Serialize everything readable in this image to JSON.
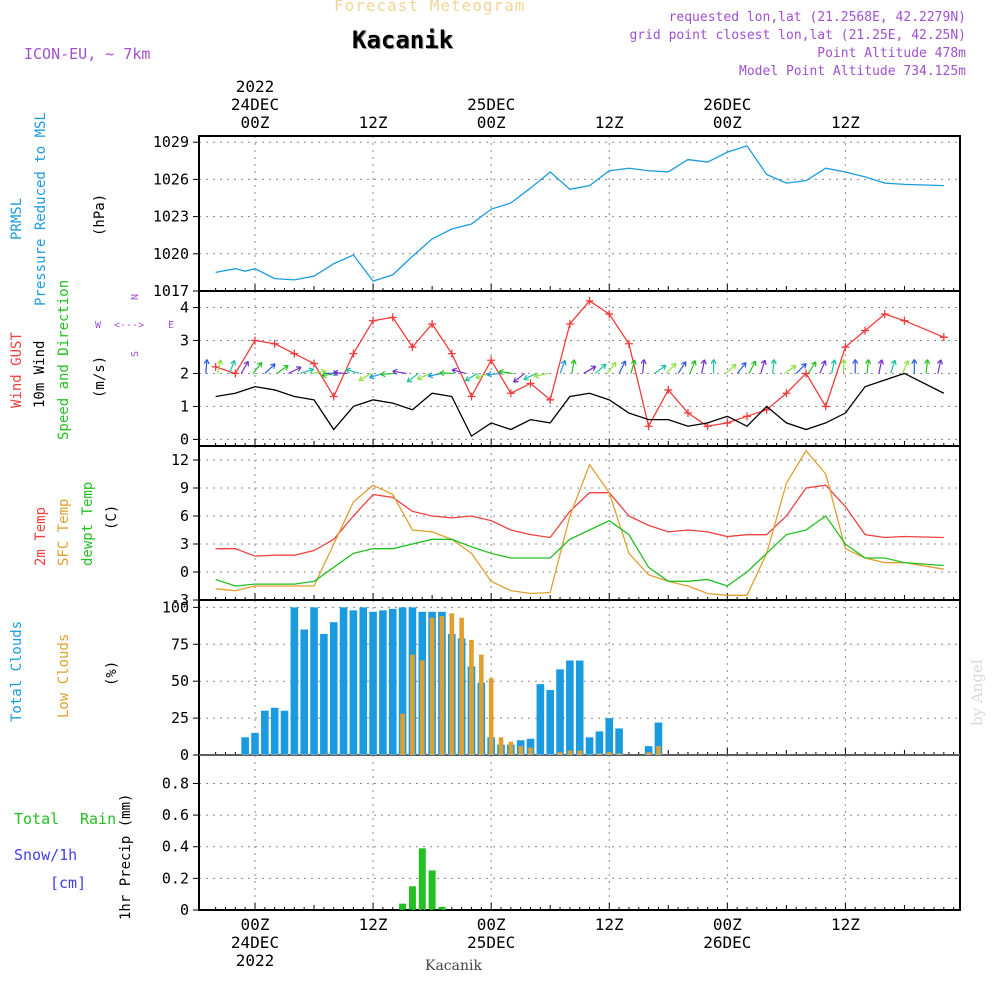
{
  "header": {
    "super_title": "Forecast Meteogram",
    "station": "Kacanik",
    "model": "ICON-EU, ~ 7km",
    "requested": "requested lon,lat (21.2568E, 42.2279N)",
    "closest": "grid point closest lon,lat (21.25E, 42.25N)",
    "point_altitude": "Point Altitude 478m",
    "model_altitude": "Model Point Altitude 734.125m"
  },
  "time_axis_top": [
    {
      "line1": "2022",
      "line2": "24DEC",
      "line3": "00Z"
    },
    {
      "line1": "",
      "line2": "",
      "line3": "12Z"
    },
    {
      "line1": "",
      "line2": "25DEC",
      "line3": "00Z"
    },
    {
      "line1": "",
      "line2": "",
      "line3": "12Z"
    },
    {
      "line1": "",
      "line2": "26DEC",
      "line3": "00Z"
    },
    {
      "line1": "",
      "line2": "",
      "line3": "12Z"
    }
  ],
  "time_axis_bottom": [
    {
      "line1": "00Z",
      "line2": "24DEC",
      "line3": "2022"
    },
    {
      "line1": "12Z",
      "line2": "",
      "line3": ""
    },
    {
      "line1": "00Z",
      "line2": "25DEC",
      "line3": ""
    },
    {
      "line1": "12Z",
      "line2": "",
      "line3": ""
    },
    {
      "line1": "00Z",
      "line2": "26DEC",
      "line3": ""
    },
    {
      "line1": "12Z",
      "line2": "",
      "line3": ""
    }
  ],
  "footer_station": "Kacanik",
  "watermark": "by Angel",
  "panels": {
    "pressure": {
      "label_a": "PRMSL",
      "label_b": "Pressure Reduced to MSL",
      "unit": "(hPa)",
      "ticks": [
        "1029",
        "1026",
        "1023",
        "1020",
        "1017"
      ]
    },
    "wind": {
      "label_a": "Wind GUST",
      "label_b": "10m Wind",
      "label_c": "Speed and Direction",
      "unit": "(m/s)",
      "ticks": [
        "4",
        "3",
        "2",
        "1",
        "0"
      ],
      "compass_n": "N",
      "compass_s": "S",
      "compass_w": "W",
      "compass_e": "E",
      "compass_arrow": "<--->"
    },
    "temp": {
      "label_a": "2m Temp",
      "label_b": "SFC Temp",
      "label_c": "dewpt Temp",
      "unit": "(C)",
      "ticks": [
        "12",
        "9",
        "6",
        "3",
        "0",
        "-3"
      ]
    },
    "clouds": {
      "label_a": "Total Clouds",
      "label_b": "Low Clouds",
      "unit": "(%)",
      "ticks": [
        "100",
        "75",
        "50",
        "25",
        "0"
      ]
    },
    "precip": {
      "label_total": "Total",
      "label_rain": "Rain",
      "label_snow": "Snow/1h",
      "label_cm": "[cm]",
      "unit": "1hr Precip (mm)",
      "ticks": [
        "0.8",
        "0.6",
        "0.4",
        "0.2",
        "0"
      ]
    }
  },
  "colors": {
    "pressure": "#1a9be0",
    "gust": "#f03c3c",
    "wind": "#000000",
    "temp2m": "#f04040",
    "sfc": "#e0a030",
    "dewpt": "#22c022",
    "total_cloud": "#1a9be0",
    "low_cloud": "#e0a030",
    "rain": "#22c022",
    "purple": "#a050d0",
    "frame": "#000000"
  },
  "chart_data": [
    {
      "type": "line",
      "title": "PRMSL",
      "ylabel": "(hPa)",
      "ylim": [
        1017,
        1029.5
      ],
      "x_unit": "hours from 24DEC 00Z",
      "series": [
        {
          "name": "PRMSL",
          "x": [
            -4,
            -2,
            -1,
            0,
            2,
            4,
            6,
            8,
            10,
            12,
            14,
            16,
            18,
            20,
            22,
            24,
            26,
            28,
            30,
            32,
            34,
            36,
            38,
            40,
            42,
            44,
            46,
            48,
            50,
            52,
            54,
            56,
            58,
            60,
            62,
            64,
            66,
            70
          ],
          "values": [
            1018.5,
            1018.8,
            1018.6,
            1018.8,
            1018.0,
            1017.9,
            1018.2,
            1019.2,
            1019.9,
            1017.8,
            1018.3,
            1019.8,
            1021.2,
            1022.0,
            1022.4,
            1023.6,
            1024.1,
            1025.3,
            1026.6,
            1025.2,
            1025.5,
            1026.7,
            1026.9,
            1026.7,
            1026.6,
            1027.6,
            1027.4,
            1028.2,
            1028.7,
            1026.4,
            1025.7,
            1025.9,
            1026.9,
            1026.6,
            1026.2,
            1025.7,
            1025.6,
            1025.5
          ]
        }
      ]
    },
    {
      "type": "line",
      "title": "Wind",
      "ylabel": "(m/s)",
      "ylim": [
        -0.2,
        4.5
      ],
      "x_unit": "hours from 24DEC 00Z",
      "series": [
        {
          "name": "Wind GUST",
          "x": [
            -4,
            -2,
            0,
            2,
            4,
            6,
            8,
            10,
            12,
            14,
            16,
            18,
            20,
            22,
            24,
            26,
            28,
            30,
            32,
            34,
            36,
            38,
            40,
            42,
            44,
            46,
            48,
            50,
            52,
            54,
            56,
            58,
            60,
            62,
            64,
            66,
            70
          ],
          "values": [
            2.2,
            2.0,
            3.0,
            2.9,
            2.6,
            2.3,
            1.3,
            2.6,
            3.6,
            3.7,
            2.8,
            3.5,
            2.6,
            1.3,
            2.4,
            1.4,
            1.7,
            1.2,
            3.5,
            4.2,
            3.8,
            2.9,
            0.4,
            1.5,
            0.8,
            0.4,
            0.5,
            0.7,
            0.9,
            1.4,
            2.0,
            1.0,
            2.8,
            3.3,
            3.8,
            3.6,
            3.1
          ]
        },
        {
          "name": "10m Wind",
          "x": [
            -4,
            -2,
            0,
            2,
            4,
            6,
            8,
            10,
            12,
            14,
            16,
            18,
            20,
            22,
            24,
            26,
            28,
            30,
            32,
            34,
            36,
            38,
            40,
            42,
            44,
            46,
            48,
            50,
            52,
            54,
            56,
            58,
            60,
            62,
            64,
            66,
            70
          ],
          "values": [
            1.3,
            1.4,
            1.6,
            1.5,
            1.3,
            1.2,
            0.3,
            1.0,
            1.2,
            1.1,
            0.9,
            1.4,
            1.3,
            0.1,
            0.5,
            0.3,
            0.6,
            0.5,
            1.3,
            1.4,
            1.2,
            0.8,
            0.6,
            0.6,
            0.4,
            0.5,
            0.7,
            0.4,
            1.0,
            0.5,
            0.3,
            0.5,
            0.8,
            1.6,
            1.8,
            2.0,
            1.4
          ]
        }
      ]
    },
    {
      "type": "line",
      "title": "Temperature",
      "ylabel": "(C)",
      "ylim": [
        -3,
        13.5
      ],
      "x_unit": "hours from 24DEC 00Z",
      "series": [
        {
          "name": "2m Temp",
          "x": [
            -4,
            -2,
            0,
            2,
            4,
            6,
            8,
            10,
            12,
            14,
            16,
            18,
            20,
            22,
            24,
            26,
            28,
            30,
            32,
            34,
            36,
            38,
            40,
            42,
            44,
            46,
            48,
            50,
            52,
            54,
            56,
            58,
            60,
            62,
            64,
            66,
            70
          ],
          "values": [
            2.5,
            2.5,
            1.7,
            1.8,
            1.8,
            2.3,
            3.5,
            6.0,
            8.3,
            8.0,
            6.5,
            6.0,
            5.8,
            6.0,
            5.5,
            4.5,
            4.0,
            3.7,
            6.5,
            8.5,
            8.5,
            6.0,
            5.0,
            4.3,
            4.5,
            4.3,
            3.8,
            4.0,
            4.0,
            6.0,
            9.0,
            9.3,
            7.0,
            4.0,
            3.7,
            3.8,
            3.7
          ]
        },
        {
          "name": "SFC Temp",
          "x": [
            -4,
            -2,
            0,
            2,
            4,
            6,
            8,
            10,
            12,
            14,
            16,
            18,
            20,
            22,
            24,
            26,
            28,
            30,
            32,
            34,
            36,
            38,
            40,
            42,
            44,
            46,
            48,
            50,
            52,
            54,
            56,
            58,
            60,
            62,
            64,
            66,
            70
          ],
          "values": [
            -1.8,
            -2.0,
            -1.5,
            -1.5,
            -1.5,
            -1.5,
            3.0,
            7.5,
            9.3,
            8.3,
            4.5,
            4.3,
            3.5,
            2.0,
            -1.0,
            -2.0,
            -2.3,
            -2.2,
            6.0,
            11.5,
            8.5,
            2.0,
            -0.3,
            -1.0,
            -1.5,
            -2.3,
            -2.5,
            -2.5,
            2.0,
            9.5,
            13.0,
            10.5,
            2.5,
            1.5,
            1.0,
            1.0,
            0.3
          ]
        },
        {
          "name": "dewpt Temp",
          "x": [
            -4,
            -2,
            0,
            2,
            4,
            6,
            8,
            10,
            12,
            14,
            16,
            18,
            20,
            22,
            24,
            26,
            28,
            30,
            32,
            34,
            36,
            38,
            40,
            42,
            44,
            46,
            48,
            50,
            52,
            54,
            56,
            58,
            60,
            62,
            64,
            66,
            70
          ],
          "values": [
            -0.8,
            -1.5,
            -1.3,
            -1.3,
            -1.3,
            -1.0,
            0.5,
            2.0,
            2.5,
            2.5,
            3.0,
            3.5,
            3.5,
            2.7,
            2.0,
            1.5,
            1.5,
            1.5,
            3.5,
            4.5,
            5.5,
            4.0,
            0.5,
            -1.0,
            -1.0,
            -0.8,
            -1.5,
            0.0,
            2.0,
            4.0,
            4.5,
            6.0,
            3.0,
            1.5,
            1.5,
            1.0,
            0.7
          ]
        }
      ]
    },
    {
      "type": "bar",
      "title": "Clouds",
      "ylabel": "(%)",
      "ylim": [
        0,
        105
      ],
      "x_unit": "hours from 24DEC 00Z",
      "x": [
        -2,
        -1,
        0,
        1,
        2,
        3,
        4,
        5,
        6,
        7,
        8,
        9,
        10,
        11,
        12,
        13,
        14,
        15,
        16,
        17,
        18,
        19,
        20,
        21,
        22,
        23,
        24,
        25,
        26,
        27,
        28,
        29,
        30,
        31,
        32,
        33,
        34,
        35,
        36,
        37,
        38,
        39,
        40,
        41,
        42,
        43,
        44,
        45,
        46,
        47,
        48,
        49,
        50,
        51,
        52,
        53,
        54,
        55,
        56,
        57,
        58,
        59,
        60,
        61,
        62,
        63,
        64,
        65,
        66,
        67,
        68,
        69,
        70
      ],
      "series": [
        {
          "name": "Total Clouds",
          "values": [
            0,
            12,
            15,
            30,
            32,
            30,
            100,
            85,
            100,
            82,
            90,
            100,
            98,
            100,
            97,
            98,
            99,
            100,
            100,
            97,
            97,
            97,
            82,
            79,
            60,
            49,
            12,
            7,
            7,
            10,
            11,
            48,
            44,
            58,
            64,
            64,
            12,
            16,
            25,
            18,
            0,
            0,
            6,
            22,
            0,
            0,
            0,
            0,
            0,
            0,
            0,
            0,
            0,
            0,
            0,
            0,
            0,
            0,
            0,
            0,
            0,
            0,
            0,
            0,
            0,
            0,
            0,
            0,
            0,
            0,
            0,
            0,
            0
          ]
        },
        {
          "name": "Low Clouds",
          "values": [
            0,
            0,
            0,
            0,
            0,
            0,
            0,
            0,
            0,
            0,
            0,
            0,
            0,
            0,
            0,
            0,
            0,
            28,
            68,
            64,
            93,
            94,
            96,
            93,
            78,
            68,
            52,
            12,
            9,
            6,
            5,
            0,
            0,
            2,
            3,
            3,
            0,
            1,
            2,
            1,
            0,
            0,
            2,
            6,
            0,
            0,
            0,
            0,
            0,
            0,
            0,
            0,
            0,
            0,
            0,
            0,
            0,
            0,
            0,
            0,
            0,
            0,
            0,
            0,
            0,
            0,
            0,
            0,
            0,
            0,
            0,
            0,
            0
          ]
        }
      ]
    },
    {
      "type": "bar",
      "title": "Precipitation",
      "ylabel": "1hr Precip (mm)",
      "ylim": [
        0,
        0.98
      ],
      "x_unit": "hours from 24DEC 00Z",
      "x": [
        15,
        16,
        17,
        18,
        19
      ],
      "series": [
        {
          "name": "Total Rain",
          "values": [
            0.04,
            0.15,
            0.39,
            0.25,
            0.02
          ]
        }
      ]
    }
  ]
}
